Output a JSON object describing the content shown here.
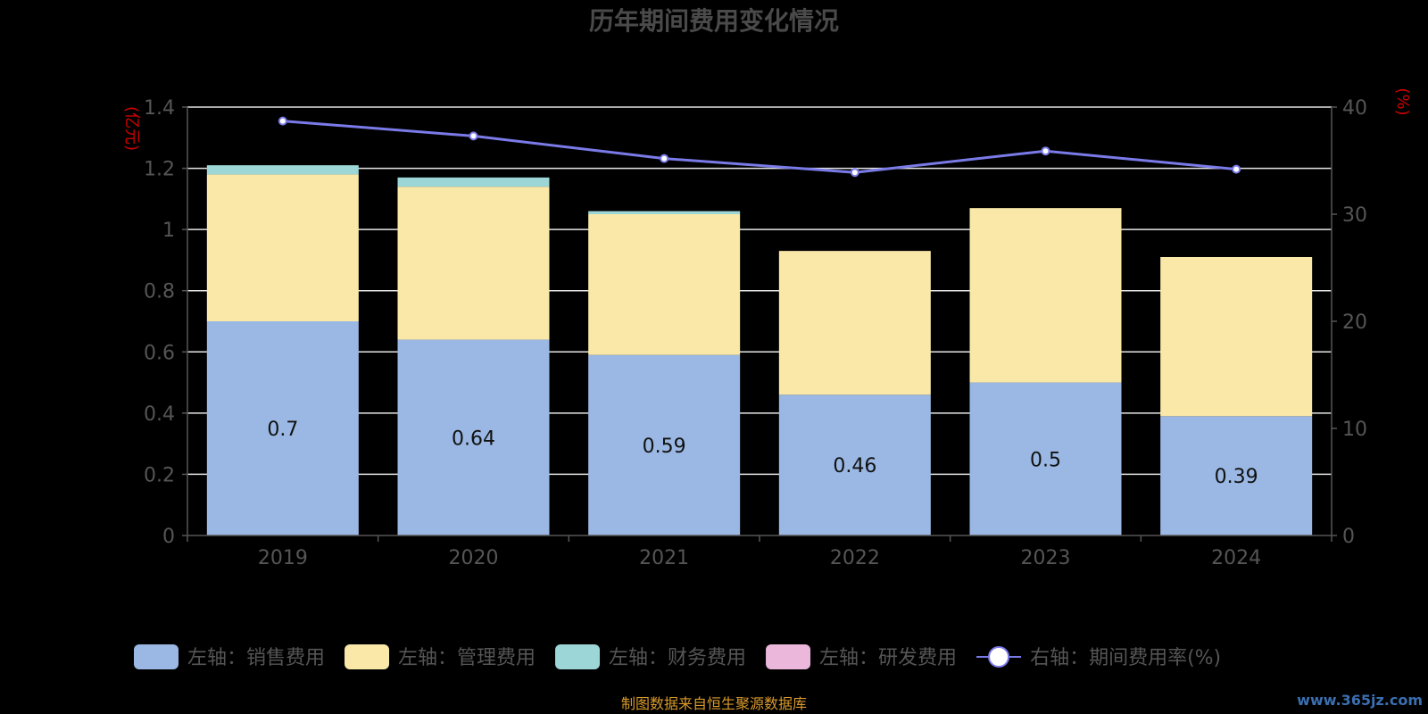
{
  "chart_data": {
    "type": "bar",
    "title": "历年期间费用变化情况",
    "categories": [
      "2019",
      "2020",
      "2021",
      "2022",
      "2023",
      "2024"
    ],
    "y_left": {
      "unit": "(亿元)",
      "min": 0,
      "max": 1.4,
      "ticks": [
        "0",
        "0.2",
        "0.4",
        "0.6",
        "0.8",
        "1",
        "1.2",
        "1.4"
      ]
    },
    "y_right": {
      "unit": "(%)",
      "min": 0,
      "max": 40,
      "ticks": [
        "0",
        "10",
        "20",
        "30",
        "40"
      ]
    },
    "series": [
      {
        "name": "左轴：销售费用",
        "kind": "bar",
        "stack": "cost",
        "color": "#9ab8e3",
        "values": [
          0.7,
          0.64,
          0.59,
          0.46,
          0.5,
          0.39
        ],
        "labels": [
          "0.7",
          "0.64",
          "0.59",
          "0.46",
          "0.5",
          "0.39"
        ]
      },
      {
        "name": "左轴：管理费用",
        "kind": "bar",
        "stack": "cost",
        "color": "#fae8a8",
        "values": [
          0.48,
          0.5,
          0.46,
          0.47,
          0.57,
          0.52
        ]
      },
      {
        "name": "左轴：财务费用",
        "kind": "bar",
        "stack": "cost",
        "color": "#9dd6d6",
        "values": [
          0.03,
          0.03,
          0.01,
          0,
          0,
          0
        ]
      },
      {
        "name": "左轴：研发费用",
        "kind": "bar",
        "stack": "cost",
        "color": "#ebb8dc",
        "values": [
          0,
          0,
          0,
          0,
          0,
          0
        ]
      },
      {
        "name": "右轴：期间费用率(%)",
        "kind": "line",
        "axis": "right",
        "color": "#7a7ae8",
        "values": [
          38.7,
          37.3,
          35.2,
          33.9,
          35.9,
          34.2
        ]
      }
    ],
    "grid": true,
    "legend": "bottom"
  },
  "footer": {
    "source": "制图数据来自恒生聚源数据库",
    "watermark": "www.365jz.com"
  }
}
